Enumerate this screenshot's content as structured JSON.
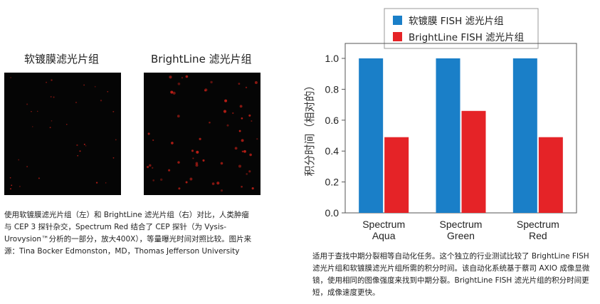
{
  "panels": {
    "left_title": "软镀膜滤光片组",
    "right_title": "BrightLine 滤光片组"
  },
  "captions": {
    "left": "使用软镀膜滤光片组（左）和 BrightLine 滤光片组（右）对比，人类肿瘤与 CEP 3 探针杂交，Spectrum Red 结合了 CEP 探针（为 Vysis-Urovysion™分析的一部分，放大400X），等量曝光时间对照比较。图片来源：Tina Bocker Edmonston，MD，Thomas Jefferson University",
    "right": "适用于查找中期分裂相等自动化任务。这个独立的行业测试比较了 BrightLine FISH 滤光片组和软镀膜滤光片组所需的积分时间。该自动化系统基于蔡司 AXIO 成像显微镜，使用相同的图像强度来找到中期分裂。BrightLine FISH 滤光片组的积分时间更短，成像速度更快。"
  },
  "colors": {
    "series_soft": "#1a7fc8",
    "series_brightline": "#e52327",
    "spots": "#e0241a",
    "micro_bg": "#050505"
  },
  "chart_data": {
    "type": "bar",
    "categories": [
      [
        "Spectrum",
        "Aqua"
      ],
      [
        "Spectrum",
        "Green"
      ],
      [
        "Spectrum",
        "Red"
      ]
    ],
    "series": [
      {
        "name": "软镀膜 FISH 滤光片组",
        "values": [
          1.0,
          1.0,
          1.0
        ]
      },
      {
        "name": "BrightLine FISH 滤光片组",
        "values": [
          0.49,
          0.66,
          0.49
        ]
      }
    ],
    "ylabel": "积分时间（相对的）",
    "xlabel": "",
    "ylim": [
      0.0,
      1.0
    ],
    "yticks": [
      "0.0",
      "0.2",
      "0.4",
      "0.6",
      "0.8",
      "1.0"
    ],
    "grid": false,
    "legend_position": "top"
  }
}
